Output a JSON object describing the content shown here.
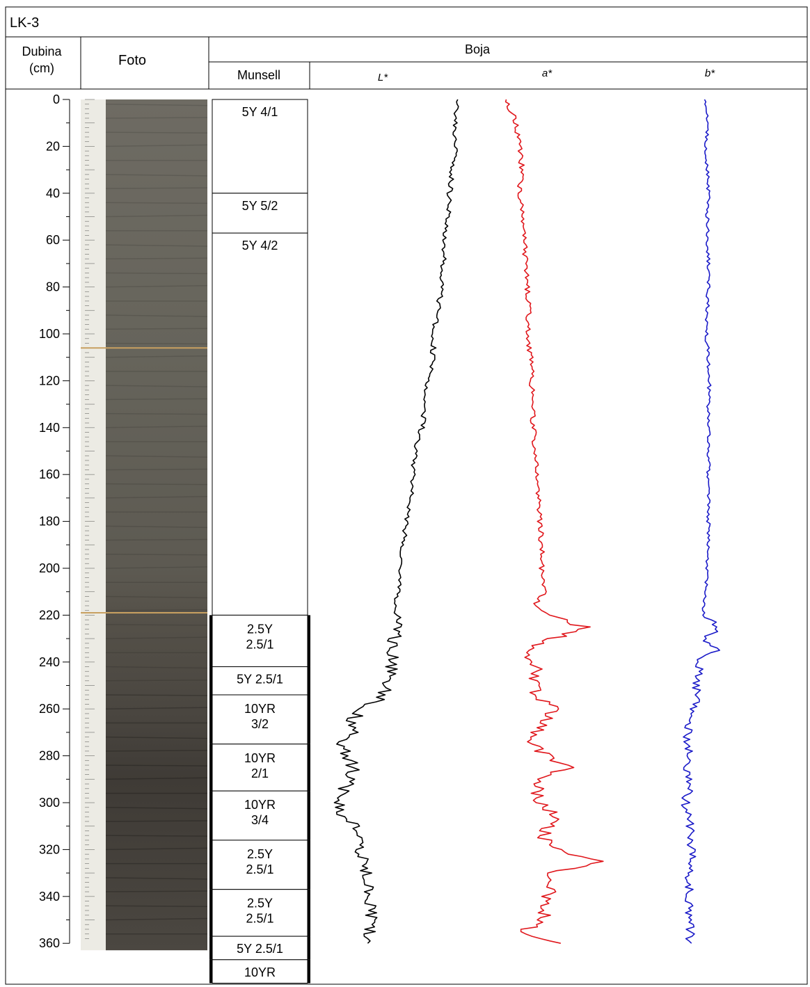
{
  "core_title": "LK-3",
  "header": {
    "depth_label_line1": "Dubina",
    "depth_label_line2": "(cm)",
    "photo_label": "Foto",
    "color_label": "Boja",
    "munsell_label": "Munsell",
    "L_label": "L*",
    "a_label": "a*",
    "b_label": "b*"
  },
  "colors": {
    "L_series": "#000000",
    "a_series": "#e0161b",
    "b_series": "#1a1ac8",
    "photo_dark": "#4d4a44",
    "photo_light": "#6f6c64",
    "scale_paper": "#ecebe4"
  },
  "munsell_units": [
    {
      "top": 0,
      "bottom": 40,
      "label": [
        "5Y 4/1"
      ]
    },
    {
      "top": 40,
      "bottom": 57,
      "label": [
        "5Y 5/2"
      ]
    },
    {
      "top": 57,
      "bottom": 220,
      "label": [
        "5Y 4/2"
      ]
    },
    {
      "top": 220,
      "bottom": 242,
      "label": [
        "2.5Y",
        "2.5/1"
      ]
    },
    {
      "top": 242,
      "bottom": 254,
      "label": [
        "5Y 2.5/1"
      ]
    },
    {
      "top": 254,
      "bottom": 275,
      "label": [
        "10YR",
        "3/2"
      ]
    },
    {
      "top": 275,
      "bottom": 295,
      "label": [
        "10YR",
        "2/1"
      ]
    },
    {
      "top": 295,
      "bottom": 316,
      "label": [
        "10YR",
        "3/4"
      ]
    },
    {
      "top": 316,
      "bottom": 337,
      "label": [
        "2.5Y",
        "2.5/1"
      ]
    },
    {
      "top": 337,
      "bottom": 357,
      "label": [
        "2.5Y",
        "2.5/1"
      ]
    },
    {
      "top": 357,
      "bottom": 367,
      "label": [
        "5Y 2.5/1"
      ]
    },
    {
      "top": 367,
      "bottom": 377,
      "label": [
        "10YR"
      ]
    }
  ],
  "chart_data": {
    "type": "line",
    "orientation": "depth-vertical",
    "ylabel": "Dubina (cm)",
    "y_ticks": [
      0,
      20,
      40,
      60,
      80,
      100,
      120,
      140,
      160,
      180,
      200,
      220,
      240,
      260,
      280,
      300,
      320,
      340,
      360
    ],
    "ylim": [
      0,
      360
    ],
    "series": [
      {
        "name": "L*",
        "depth": [
          0,
          10,
          20,
          30,
          40,
          50,
          60,
          70,
          80,
          90,
          100,
          110,
          120,
          130,
          140,
          150,
          160,
          170,
          180,
          190,
          200,
          210,
          220,
          230,
          240,
          250,
          255,
          260,
          265,
          270,
          275,
          280,
          285,
          290,
          295,
          300,
          305,
          310,
          315,
          320,
          330,
          340,
          350,
          360
        ],
        "values": [
          0.85,
          0.84,
          0.84,
          0.82,
          0.8,
          0.79,
          0.77,
          0.76,
          0.75,
          0.72,
          0.7,
          0.69,
          0.66,
          0.64,
          0.62,
          0.58,
          0.56,
          0.55,
          0.52,
          0.5,
          0.48,
          0.46,
          0.45,
          0.44,
          0.43,
          0.4,
          0.35,
          0.25,
          0.15,
          0.2,
          0.1,
          0.12,
          0.18,
          0.15,
          0.1,
          0.08,
          0.1,
          0.18,
          0.2,
          0.22,
          0.26,
          0.28,
          0.29,
          0.28
        ]
      },
      {
        "name": "a*",
        "depth": [
          0,
          10,
          20,
          30,
          40,
          50,
          60,
          70,
          80,
          90,
          100,
          110,
          120,
          130,
          140,
          150,
          160,
          170,
          180,
          190,
          200,
          210,
          215,
          220,
          225,
          230,
          235,
          240,
          245,
          250,
          255,
          260,
          265,
          270,
          275,
          280,
          285,
          290,
          295,
          300,
          305,
          310,
          315,
          320,
          325,
          330,
          340,
          350,
          355,
          360
        ],
        "values": [
          0.12,
          0.18,
          0.2,
          0.22,
          0.2,
          0.22,
          0.23,
          0.24,
          0.25,
          0.26,
          0.25,
          0.27,
          0.28,
          0.28,
          0.29,
          0.3,
          0.31,
          0.32,
          0.33,
          0.34,
          0.34,
          0.36,
          0.3,
          0.38,
          0.6,
          0.42,
          0.25,
          0.3,
          0.32,
          0.28,
          0.32,
          0.42,
          0.36,
          0.3,
          0.28,
          0.38,
          0.5,
          0.35,
          0.3,
          0.33,
          0.42,
          0.38,
          0.35,
          0.45,
          0.7,
          0.42,
          0.38,
          0.35,
          0.22,
          0.48
        ]
      },
      {
        "name": "b*",
        "depth": [
          0,
          10,
          20,
          30,
          40,
          50,
          60,
          70,
          80,
          90,
          100,
          110,
          120,
          130,
          140,
          150,
          160,
          170,
          180,
          190,
          200,
          210,
          215,
          220,
          225,
          230,
          235,
          240,
          245,
          250,
          255,
          260,
          265,
          270,
          275,
          280,
          285,
          290,
          295,
          300,
          305,
          310,
          315,
          320,
          330,
          340,
          350,
          360
        ],
        "values": [
          0.5,
          0.51,
          0.5,
          0.51,
          0.52,
          0.51,
          0.51,
          0.52,
          0.52,
          0.51,
          0.5,
          0.52,
          0.53,
          0.52,
          0.53,
          0.52,
          0.52,
          0.52,
          0.52,
          0.52,
          0.51,
          0.5,
          0.48,
          0.47,
          0.62,
          0.48,
          0.6,
          0.42,
          0.44,
          0.4,
          0.42,
          0.38,
          0.34,
          0.32,
          0.3,
          0.34,
          0.3,
          0.32,
          0.33,
          0.3,
          0.32,
          0.34,
          0.35,
          0.36,
          0.34,
          0.33,
          0.35,
          0.34
        ]
      }
    ],
    "xlabel": "",
    "grid": false,
    "legend": "none"
  }
}
